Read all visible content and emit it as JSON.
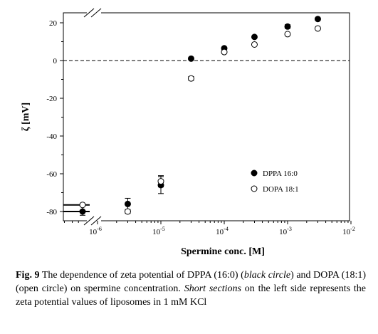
{
  "chart_data": {
    "type": "scatter",
    "title": "",
    "xlabel": "Spermine conc. [M]",
    "ylabel": "ζ [mV]",
    "x_scale": "log",
    "xlim": [
      1e-07,
      0.01
    ],
    "ylim": [
      -85,
      25
    ],
    "x_ticks": [
      {
        "value": 1e-06,
        "base": "10",
        "exp": "-6"
      },
      {
        "value": 1e-05,
        "base": "10",
        "exp": "-5"
      },
      {
        "value": 0.0001,
        "base": "10",
        "exp": "-4"
      },
      {
        "value": 0.001,
        "base": "10",
        "exp": "-3"
      },
      {
        "value": 0.01,
        "base": "10",
        "exp": "-2"
      }
    ],
    "y_ticks": [
      20,
      0,
      -20,
      -40,
      -60,
      -80
    ],
    "reference_line_y": 0,
    "series": [
      {
        "name": "DPPA 16:0",
        "marker": "filled-circle",
        "color": "#000000",
        "points": [
          {
            "x": 3e-06,
            "y": -76,
            "err": 3
          },
          {
            "x": 1e-05,
            "y": -66,
            "err": 4.5
          },
          {
            "x": 3e-05,
            "y": 1,
            "err": 0
          },
          {
            "x": 0.0001,
            "y": 6.5,
            "err": 0
          },
          {
            "x": 0.0003,
            "y": 12.5,
            "err": 0
          },
          {
            "x": 0.001,
            "y": 18,
            "err": 1
          },
          {
            "x": 0.003,
            "y": 22,
            "err": 0.5
          }
        ],
        "kcl_reference": {
          "y": -80,
          "err": 2
        }
      },
      {
        "name": "DOPA 18:1",
        "marker": "open-circle",
        "color": "#000000",
        "points": [
          {
            "x": 3e-06,
            "y": -80,
            "err": 1
          },
          {
            "x": 1e-05,
            "y": -64,
            "err": 3
          },
          {
            "x": 3e-05,
            "y": -9.5,
            "err": 1
          },
          {
            "x": 0.0001,
            "y": 4.5,
            "err": 0
          },
          {
            "x": 0.0003,
            "y": 8.5,
            "err": 0
          },
          {
            "x": 0.001,
            "y": 14,
            "err": 0
          },
          {
            "x": 0.003,
            "y": 17,
            "err": 0.5
          }
        ],
        "kcl_reference": {
          "y": -76.5,
          "err": 0
        }
      }
    ],
    "legend_position": "bottom-right",
    "grid": false
  },
  "caption": {
    "label": "Fig. 9",
    "text_part1": " The dependence of zeta potential of DPPA (16:0) (",
    "black_circle": "black circle",
    "text_part2": ") and DOPA (18:1) (open circle) on spermine concentration. ",
    "short_sections": "Short sections",
    "text_part3": " on the left side represents the zeta potential values of liposomes in 1 mM KCl"
  }
}
